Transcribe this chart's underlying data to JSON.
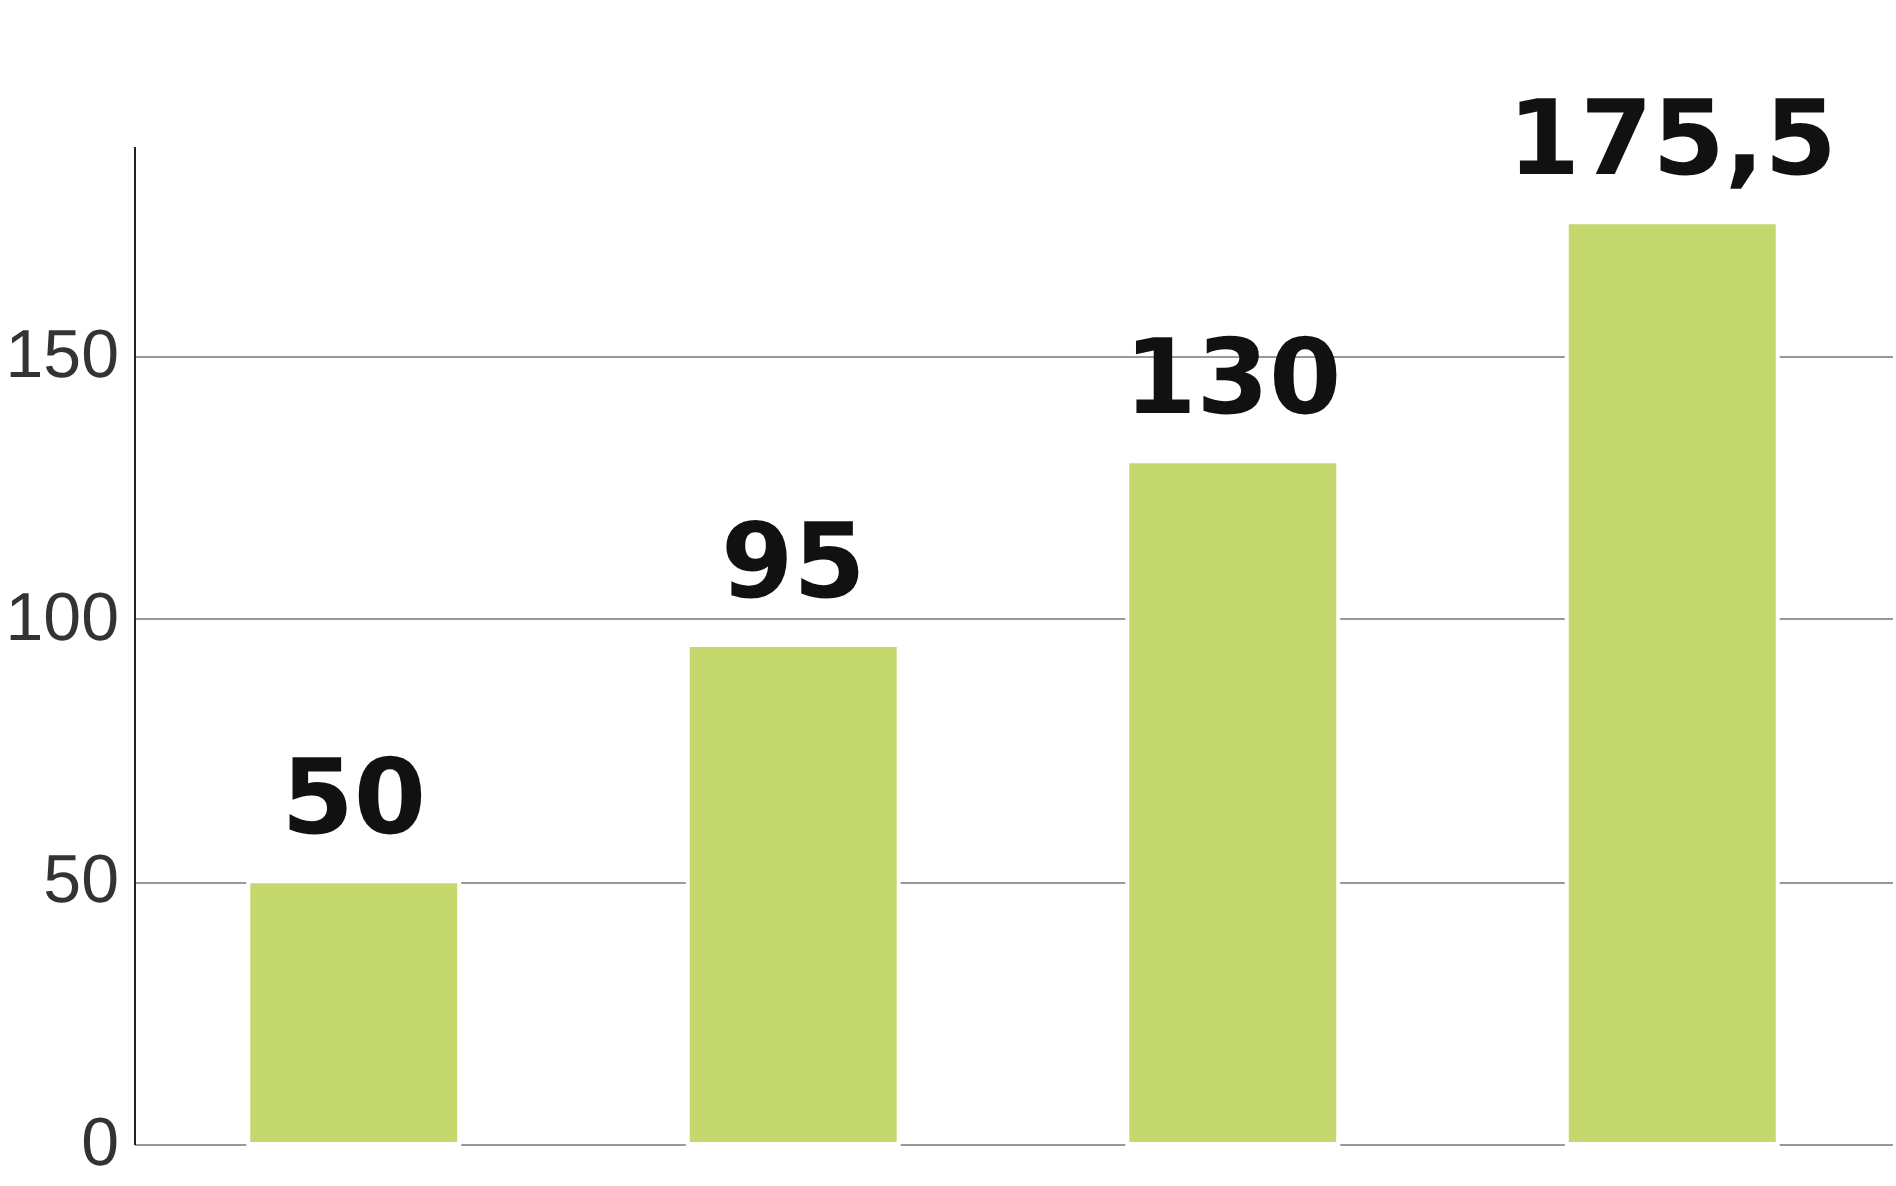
{
  "chart_data": {
    "type": "bar",
    "categories": [
      null,
      null,
      null,
      null
    ],
    "values": [
      50,
      95,
      130,
      175.5
    ],
    "value_labels": [
      "50",
      "95",
      "130",
      "175,5"
    ],
    "color": "#c5d86d",
    "ylim": [
      0,
      190
    ],
    "yticks": [
      0,
      50,
      100,
      150
    ],
    "grid": "y",
    "tick_labels": "y"
  }
}
